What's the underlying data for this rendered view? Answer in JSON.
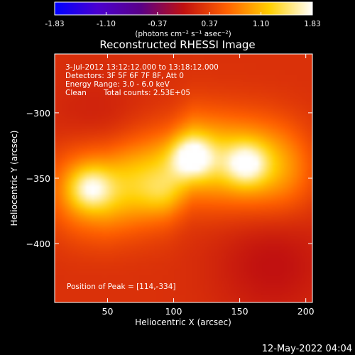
{
  "chart_data": {
    "type": "heatmap",
    "title": "Reconstructed RHESSI Image",
    "xlabel": "Heliocentric X (arcsec)",
    "ylabel": "Heliocentric Y (arcsec)",
    "xlim": [
      10,
      205
    ],
    "ylim": [
      -445,
      -255
    ],
    "xticks": [
      50,
      100,
      150,
      200
    ],
    "yticks": [
      -300,
      -350,
      -400
    ],
    "colorbar": {
      "min": -1.83,
      "max": 1.83,
      "ticks": [
        "-1.83",
        "-1.10",
        "-0.37",
        "0.37",
        "1.10",
        "1.83"
      ],
      "unit_label": "(photons cm⁻² s⁻¹ asec⁻²)",
      "colors": [
        "#0000ff",
        "#4b00d0",
        "#5a0088",
        "#c01010",
        "#ff6000",
        "#ffd000",
        "#ffffff"
      ]
    },
    "annotations": {
      "time": "3-Jul-2012 13:12:12.000 to 13:18:12.000",
      "detectors": "Detectors: 3F 5F 6F 7F 8F, Att 0",
      "energy": "Energy Range: 3.0 - 6.0 keV",
      "method": "Clean",
      "counts": "Total counts: 2.53E+05",
      "peak": "Position of Peak = [114,-334]"
    },
    "sources": [
      {
        "x": 114,
        "y": -334,
        "peak": 1.83
      },
      {
        "x": 155,
        "y": -339,
        "peak": 1.7
      },
      {
        "x": 37,
        "y": -358,
        "peak": 1.65
      },
      {
        "x": 90,
        "y": -362,
        "peak": 1.2
      }
    ],
    "background_level": 0.25
  },
  "footer": {
    "date": "12-May-2022 04:04"
  }
}
